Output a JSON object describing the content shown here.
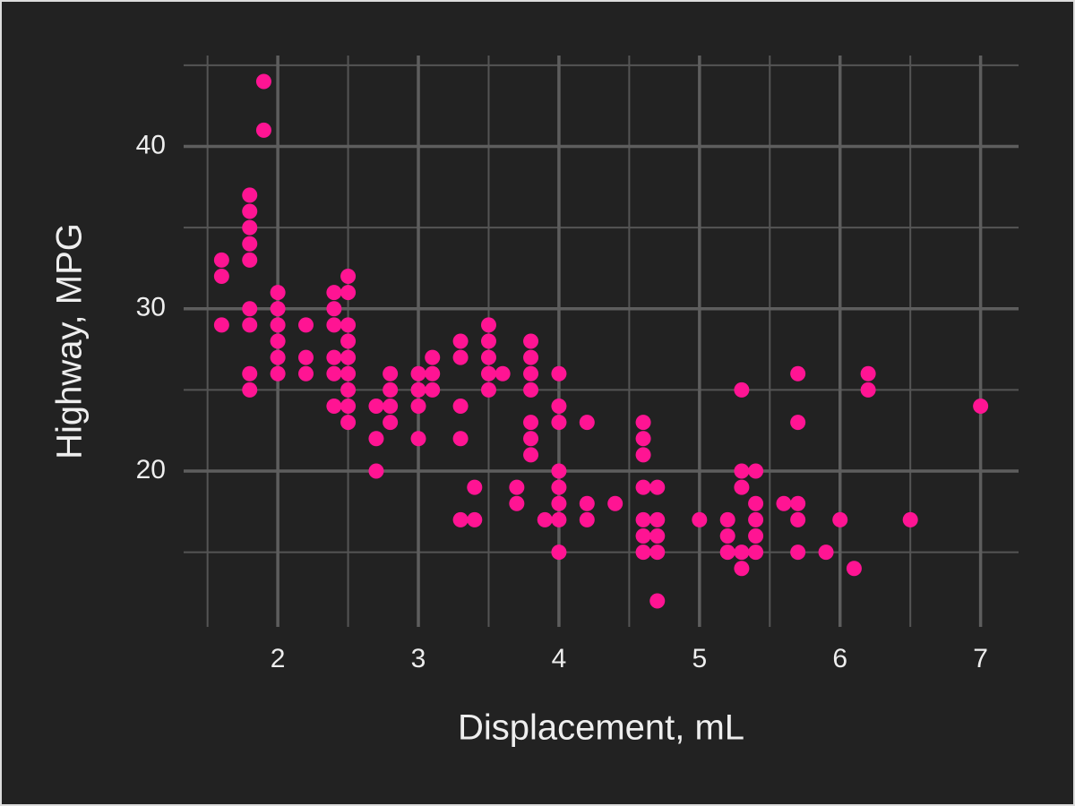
{
  "chart_data": {
    "type": "scatter",
    "x_label": "Displacement, mL",
    "y_label": "Highway, MPG",
    "color": "#ff1493",
    "grid": true,
    "xlim": [
      1.33,
      7.27
    ],
    "ylim": [
      10.4,
      45.6
    ],
    "xticks": [
      2,
      3,
      4,
      5,
      6,
      7
    ],
    "yticks": [
      20,
      30,
      40
    ],
    "xminor": [
      1.5,
      2.5,
      3.5,
      4.5,
      5.5,
      6.5
    ],
    "yminor": [
      15,
      25,
      35,
      45
    ],
    "x": [
      1.6,
      1.6,
      1.6,
      1.9,
      1.9,
      1.8,
      1.8,
      1.8,
      1.8,
      1.8,
      1.8,
      1.8,
      1.8,
      1.8,
      2.0,
      2.0,
      2.0,
      2.0,
      2.0,
      2.0,
      2.2,
      2.2,
      2.2,
      2.4,
      2.4,
      2.4,
      2.4,
      2.4,
      2.4,
      2.5,
      2.5,
      2.5,
      2.5,
      2.5,
      2.5,
      2.5,
      2.5,
      2.5,
      2.7,
      2.7,
      2.7,
      2.8,
      2.8,
      2.8,
      2.8,
      3.0,
      3.0,
      3.0,
      3.0,
      3.1,
      3.1,
      3.1,
      3.3,
      3.3,
      3.3,
      3.3,
      3.3,
      3.4,
      3.4,
      3.5,
      3.5,
      3.5,
      3.5,
      3.5,
      3.6,
      3.7,
      3.7,
      3.8,
      3.8,
      3.8,
      3.8,
      3.8,
      3.8,
      3.8,
      3.9,
      4.0,
      4.0,
      4.0,
      4.0,
      4.0,
      4.0,
      4.0,
      4.0,
      4.2,
      4.2,
      4.2,
      4.4,
      4.6,
      4.6,
      4.6,
      4.6,
      4.6,
      4.6,
      4.6,
      4.7,
      4.7,
      4.7,
      4.7,
      4.7,
      5.0,
      5.2,
      5.2,
      5.2,
      5.3,
      5.3,
      5.3,
      5.3,
      5.3,
      5.4,
      5.4,
      5.4,
      5.4,
      5.4,
      5.6,
      5.7,
      5.7,
      5.7,
      5.7,
      5.7,
      5.9,
      6.0,
      6.1,
      6.2,
      6.2,
      6.5,
      7.0
    ],
    "y": [
      33,
      32,
      29,
      44,
      41,
      37,
      36,
      35,
      34,
      33,
      30,
      29,
      26,
      25,
      31,
      30,
      29,
      28,
      27,
      26,
      29,
      27,
      26,
      31,
      30,
      29,
      27,
      26,
      24,
      32,
      31,
      29,
      28,
      27,
      26,
      25,
      24,
      23,
      24,
      22,
      20,
      26,
      25,
      24,
      23,
      26,
      25,
      24,
      22,
      27,
      26,
      25,
      28,
      27,
      24,
      22,
      17,
      19,
      17,
      29,
      28,
      27,
      26,
      25,
      26,
      19,
      18,
      28,
      27,
      26,
      25,
      23,
      22,
      21,
      17,
      26,
      24,
      23,
      20,
      19,
      18,
      17,
      15,
      23,
      18,
      17,
      18,
      23,
      22,
      21,
      19,
      17,
      16,
      15,
      19,
      17,
      16,
      15,
      12,
      17,
      17,
      16,
      15,
      25,
      20,
      19,
      15,
      14,
      20,
      18,
      17,
      16,
      15,
      18,
      26,
      23,
      18,
      17,
      15,
      15,
      17,
      14,
      26,
      25,
      17,
      24
    ]
  }
}
